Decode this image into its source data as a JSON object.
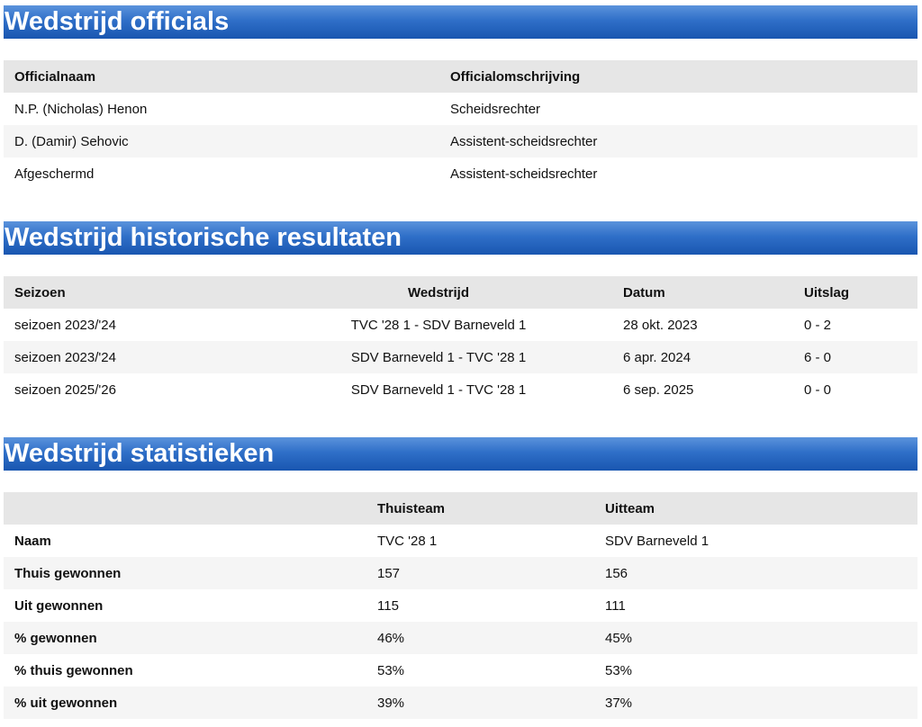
{
  "officials": {
    "title": "Wedstrijd officials",
    "headers": [
      "Officialnaam",
      "Officialomschrijving"
    ],
    "rows": [
      [
        "N.P. (Nicholas) Henon",
        "Scheidsrechter"
      ],
      [
        "D. (Damir) Sehovic",
        "Assistent-scheidsrechter"
      ],
      [
        "Afgeschermd",
        "Assistent-scheidsrechter"
      ]
    ]
  },
  "history": {
    "title": "Wedstrijd historische resultaten",
    "headers": [
      "Seizoen",
      "Wedstrijd",
      "Datum",
      "Uitslag"
    ],
    "rows": [
      [
        "seizoen 2023/'24",
        "TVC '28 1 - SDV Barneveld 1",
        "28 okt. 2023",
        "0 - 2"
      ],
      [
        "seizoen 2023/'24",
        "SDV Barneveld 1 - TVC '28 1",
        "6 apr. 2024",
        "6 - 0"
      ],
      [
        "seizoen 2025/'26",
        "SDV Barneveld 1 - TVC '28 1",
        "6 sep. 2025",
        "0 - 0"
      ]
    ]
  },
  "stats": {
    "title": "Wedstrijd statistieken",
    "headers": [
      "",
      "Thuisteam",
      "Uitteam"
    ],
    "rows": [
      [
        "Naam",
        "TVC '28 1",
        "SDV Barneveld 1"
      ],
      [
        "Thuis gewonnen",
        "157",
        "156"
      ],
      [
        "Uit gewonnen",
        "115",
        "111"
      ],
      [
        "% gewonnen",
        "46%",
        "45%"
      ],
      [
        "% thuis gewonnen",
        "53%",
        "53%"
      ],
      [
        "% uit gewonnen",
        "39%",
        "37%"
      ]
    ]
  }
}
